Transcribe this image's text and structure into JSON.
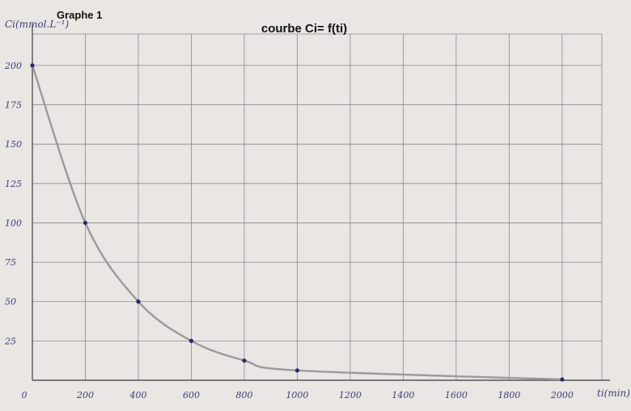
{
  "header": {
    "graph_label": "Graphe 1"
  },
  "chart_data": {
    "type": "line",
    "title": "courbe Ci= f(ti)",
    "ylabel": "Ci(mmol.L⁻¹)",
    "xlabel": "ti(min)",
    "x_tick_labels": [
      "0",
      "200",
      "400",
      "600",
      "800",
      "1000",
      "1200",
      "1400",
      "1600",
      "1800",
      "2000"
    ],
    "y_tick_labels": [
      "200",
      "175",
      "150",
      "125",
      "100",
      "75",
      "50",
      "25"
    ],
    "x_ticks": [
      0,
      200,
      400,
      600,
      800,
      1000,
      1200,
      1400,
      1600,
      1800,
      2000
    ],
    "y_ticks": [
      200,
      175,
      150,
      125,
      100,
      75,
      50,
      25
    ],
    "xlim": [
      0,
      2150
    ],
    "ylim": [
      0,
      220
    ],
    "grid": true,
    "series": [
      {
        "x": [
          0,
          200,
          400,
          600,
          800,
          1000,
          2000
        ],
        "values": [
          200,
          100,
          50,
          25,
          12.5,
          6.25,
          0.5
        ]
      }
    ],
    "colors": {
      "curve": "#9a9a9a",
      "points": "#2a2b6e",
      "grid": "#8a8a8a",
      "handwriting": "#3b3f7a"
    }
  }
}
